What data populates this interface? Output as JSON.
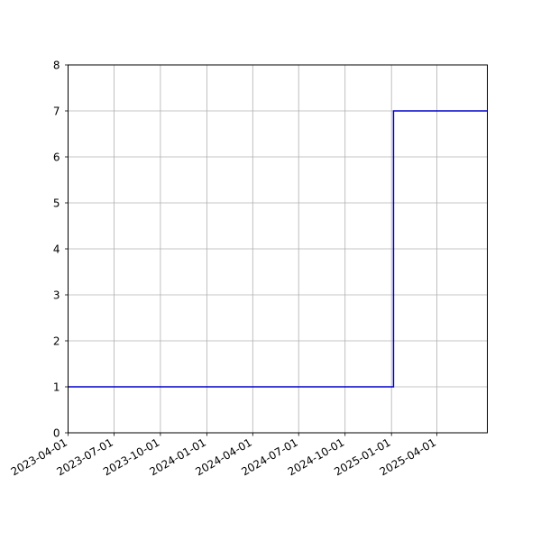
{
  "chart_data": {
    "type": "line",
    "step": "post",
    "title": "",
    "xlabel": "",
    "ylabel": "",
    "x_axis": "date",
    "xlim": [
      "2023-04-01",
      "2025-07-10"
    ],
    "ylim": [
      0,
      8
    ],
    "x_ticks": [
      "2023-04-01",
      "2023-07-01",
      "2023-10-01",
      "2024-01-01",
      "2024-04-01",
      "2024-07-01",
      "2024-10-01",
      "2025-01-01",
      "2025-04-01"
    ],
    "y_ticks": [
      0,
      1,
      2,
      3,
      4,
      5,
      6,
      7,
      8
    ],
    "grid": true,
    "legend": "none",
    "series": [
      {
        "color": "#0000cc",
        "x": [
          "2023-04-01",
          "2025-01-05",
          "2025-07-10"
        ],
        "y": [
          1,
          7,
          7
        ]
      }
    ]
  }
}
